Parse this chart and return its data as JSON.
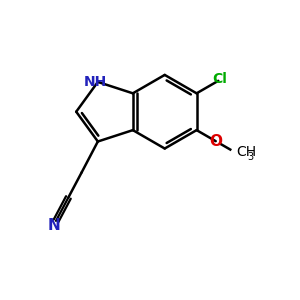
{
  "background_color": "#ffffff",
  "bond_color": "#000000",
  "n_color": "#2222bb",
  "o_color": "#dd0000",
  "cl_color": "#00aa00",
  "figsize": [
    3.0,
    3.0
  ],
  "dpi": 100,
  "lw": 1.8,
  "xlim": [
    0,
    10
  ],
  "ylim": [
    0,
    10
  ]
}
